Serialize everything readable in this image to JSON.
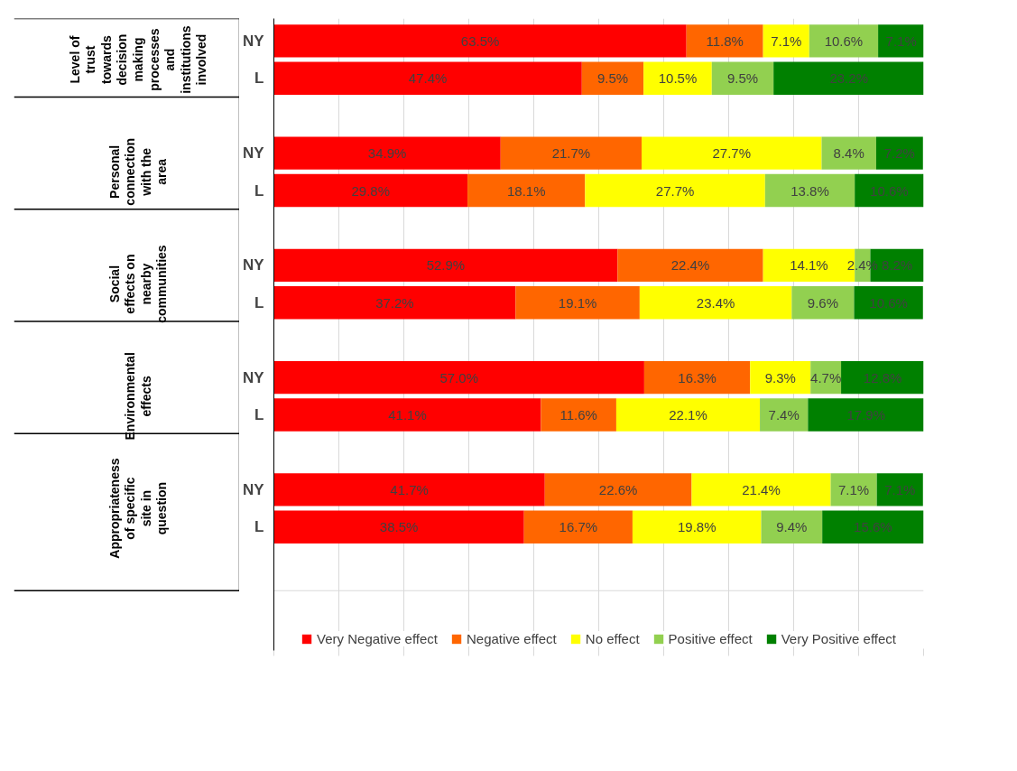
{
  "chart_data": {
    "type": "bar",
    "orientation": "horizontal",
    "stacked": true,
    "categories": [
      "NY",
      "L",
      "NY",
      "L",
      "NY",
      "L",
      "NY",
      "L",
      "NY",
      "L"
    ],
    "annotations": [
      "Level of trust towards decision making processes and institutions involved",
      "Personal connection with the area",
      "Social effects on nearby communities",
      "Environmental effects",
      "Appropriateness of specific site in question"
    ],
    "series": [
      {
        "name": "Very Negative effect",
        "color": "#ff0000",
        "values": [
          63.5,
          47.4,
          34.9,
          29.8,
          52.9,
          37.2,
          57.0,
          41.1,
          41.7,
          38.5
        ],
        "value_labels": [
          "63.5%",
          "47.4%",
          "34.9%",
          "29.8%",
          "52.9%",
          "37.2%",
          "57.0%",
          "41.1%",
          "41.7%",
          "38.5%"
        ]
      },
      {
        "name": "Negative effect",
        "color": "#ff6600",
        "values": [
          11.8,
          9.5,
          21.7,
          18.1,
          22.4,
          19.1,
          16.3,
          11.6,
          22.6,
          16.7
        ],
        "value_labels": [
          "11.8%",
          "9.5%",
          "21.7%",
          "18.1%",
          "22.4%",
          "19.1%",
          "16.3%",
          "11.6%",
          "22.6%",
          "16.7%"
        ]
      },
      {
        "name": "No effect",
        "color": "#ffff00",
        "values": [
          7.1,
          10.5,
          27.7,
          27.7,
          14.1,
          23.4,
          9.3,
          22.1,
          21.4,
          19.8
        ],
        "value_labels": [
          "7.1%",
          "10.5%",
          "27.7%",
          "27.7%",
          "14.1%",
          "23.4%",
          "9.3%",
          "22.1%",
          "21.4%",
          "19.8%"
        ]
      },
      {
        "name": "Positive effect",
        "color": "#92d050",
        "values": [
          10.6,
          9.5,
          8.4,
          13.8,
          2.4,
          9.6,
          4.7,
          7.4,
          7.1,
          9.4
        ],
        "value_labels": [
          "10.6%",
          "9.5%",
          "8.4%",
          "13.8%",
          "2.4%",
          "9.6%",
          "4.7%",
          "7.4%",
          "7.1%",
          "9.4%"
        ]
      },
      {
        "name": "Very Positive effect",
        "color": "#008000",
        "values": [
          7.1,
          23.2,
          7.2,
          10.6,
          8.2,
          10.6,
          12.8,
          17.9,
          7.1,
          15.6
        ],
        "value_labels": [
          "7.1%",
          "23.2%",
          "7.2%",
          "10.6%",
          "8.2%",
          "10.6%",
          "12.8%",
          "17.9%",
          "7.1%",
          "15.6%"
        ]
      }
    ],
    "xlim": [
      0,
      100
    ],
    "tick_labels": "y",
    "grid": "x",
    "legend": "bottom"
  }
}
